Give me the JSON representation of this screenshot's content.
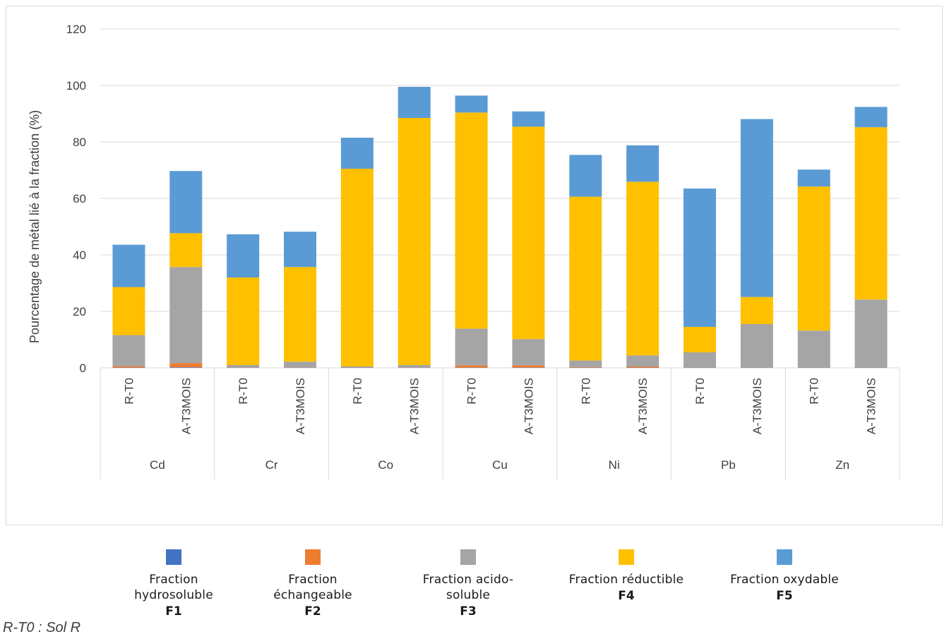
{
  "chart_data": {
    "type": "bar",
    "stacked": true,
    "ylabel": "Pourcentage de métal lié à la  fraction (%)",
    "ylim": [
      0,
      120
    ],
    "yticks": [
      0,
      20,
      40,
      60,
      80,
      100,
      120
    ],
    "grid": true,
    "legend_position": "bottom",
    "groups": [
      {
        "label": "Cd",
        "bars": [
          "R-T0",
          "A-T3MOIS"
        ]
      },
      {
        "label": "Cr",
        "bars": [
          "R-T0",
          "A-T3MOIS"
        ]
      },
      {
        "label": "Co",
        "bars": [
          "R-T0",
          "A-T3MOIS"
        ]
      },
      {
        "label": "Cu",
        "bars": [
          "R-T0",
          "A-T3MOIS"
        ]
      },
      {
        "label": "Ni",
        "bars": [
          "R-T0",
          "A-T3MOIS"
        ]
      },
      {
        "label": "Pb",
        "bars": [
          "R-T0",
          "A-T3MOIS"
        ]
      },
      {
        "label": "Zn",
        "bars": [
          "R-T0",
          "A-T3MOIS"
        ]
      }
    ],
    "series": [
      {
        "name": "Fraction hydrosoluble",
        "code": "F1",
        "color": "#4472c4",
        "values": [
          0.1,
          0.2,
          0.1,
          0.1,
          0.1,
          0.1,
          0.1,
          0.1,
          0.1,
          0.1,
          0.1,
          0.1,
          0.1,
          0.1
        ]
      },
      {
        "name": "Fraction échangeable",
        "code": "F2",
        "color": "#ed7d31",
        "values": [
          0.5,
          1.5,
          0.1,
          0.1,
          0.1,
          0.1,
          0.8,
          0.8,
          0.2,
          0.4,
          0.1,
          0.1,
          0.1,
          0.1
        ]
      },
      {
        "name": "Fraction acido-soluble",
        "code": "F3",
        "color": "#a5a5a5",
        "values": [
          11,
          34,
          0.8,
          2,
          0.3,
          0.8,
          13,
          9.3,
          2.3,
          3.9,
          5.3,
          15.3,
          13,
          24
        ]
      },
      {
        "name": "Fraction réductible",
        "code": "F4",
        "color": "#ffc000",
        "values": [
          17,
          12,
          31,
          33.5,
          70,
          87.5,
          76.5,
          75.2,
          58,
          61.5,
          9,
          9.6,
          51,
          61
        ]
      },
      {
        "name": "Fraction oxydable",
        "code": "F5",
        "color": "#5b9bd5",
        "values": [
          15,
          22,
          15.3,
          12.5,
          11,
          11,
          6,
          5.4,
          14.8,
          12.9,
          49,
          63,
          6,
          7.2
        ]
      }
    ]
  },
  "footnote": "R-T0 : Sol R"
}
